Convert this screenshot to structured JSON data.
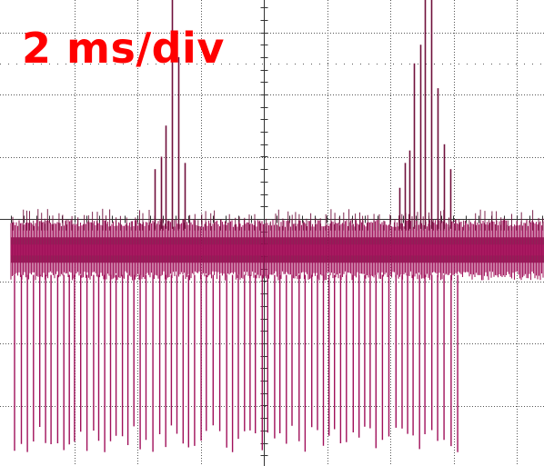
{
  "timebase_label": "2 ms/div",
  "colors": {
    "background": "#ffffff",
    "grid": "#555555",
    "trace": "#a0105a",
    "trace_dark": "#70103c",
    "trace_bright": "#d81b78",
    "label": "#ff0000"
  },
  "chart_data": {
    "type": "line",
    "title": "",
    "xlabel": "",
    "ylabel": "",
    "x_divisions": 8,
    "y_divisions": 7,
    "time_per_division_ms": 2,
    "xlim_ms": [
      0,
      17.3
    ],
    "ylim_div": [
      -3.8,
      3.5
    ],
    "grid": true,
    "legend": "none",
    "noise_band_div": [
      -0.9,
      -0.1
    ],
    "noise_band_end_ms": 17.3,
    "series": [
      {
        "pulses": [
          {
            "t_ms": 4.55,
            "peak_div": 0.8
          },
          {
            "t_ms": 4.75,
            "peak_div": 1.0
          },
          {
            "t_ms": 4.9,
            "peak_div": 1.5
          },
          {
            "t_ms": 5.1,
            "peak_div": 4.0
          },
          {
            "t_ms": 5.3,
            "peak_div": 2.6
          },
          {
            "t_ms": 5.5,
            "peak_div": 0.9
          },
          {
            "t_ms": 12.3,
            "peak_div": 0.5
          },
          {
            "t_ms": 12.45,
            "peak_div": 0.9
          },
          {
            "t_ms": 12.6,
            "peak_div": 1.1
          },
          {
            "t_ms": 12.75,
            "peak_div": 2.5
          },
          {
            "t_ms": 12.95,
            "peak_div": 2.8
          },
          {
            "t_ms": 13.1,
            "peak_div": 4.4
          },
          {
            "t_ms": 13.3,
            "peak_div": 3.9
          },
          {
            "t_ms": 13.5,
            "peak_div": 2.1
          },
          {
            "t_ms": 13.7,
            "peak_div": 1.2
          },
          {
            "t_ms": 13.9,
            "peak_div": 0.8
          }
        ]
      }
    ]
  }
}
